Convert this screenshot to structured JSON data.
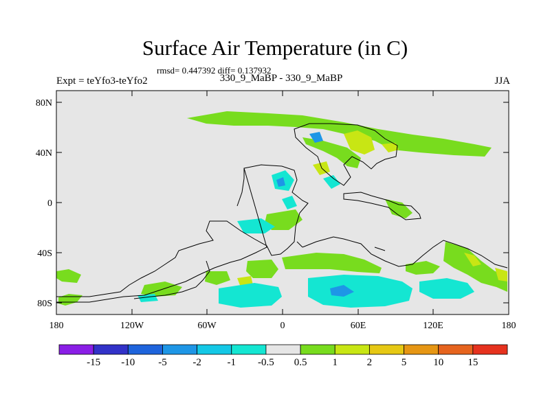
{
  "title": "Surface Air Temperature (in C)",
  "stats": "rmsd= 0.447392 diff= 0.137932",
  "expt": "Expt = teYfo3-teYfo2",
  "period": "330_9_MaBP - 330_9_MaBP",
  "season": "JJA",
  "y_ticks": [
    "80N",
    "40N",
    "0",
    "40S",
    "80S"
  ],
  "x_ticks": [
    "180",
    "120W",
    "60W",
    "0",
    "60E",
    "120E",
    "180"
  ],
  "colorbar": {
    "labels": [
      "-15",
      "-10",
      "-5",
      "-2",
      "-1",
      "-0.5",
      "0.5",
      "1",
      "2",
      "5",
      "10",
      "15"
    ],
    "colors": [
      "#8a1ee6",
      "#3232c8",
      "#1e64dc",
      "#1e96e6",
      "#14c8e6",
      "#14e6d2",
      "#e6e6e6",
      "#78dc1e",
      "#c8e614",
      "#e6c814",
      "#e69614",
      "#e6641e",
      "#e6321e"
    ]
  },
  "colors": {
    "background": "#e6e6e6",
    "green": "#78dc1e",
    "yellow": "#c8e614",
    "cyan": "#14e6d2",
    "blue": "#1e96e6",
    "orange": "#e6c814"
  }
}
